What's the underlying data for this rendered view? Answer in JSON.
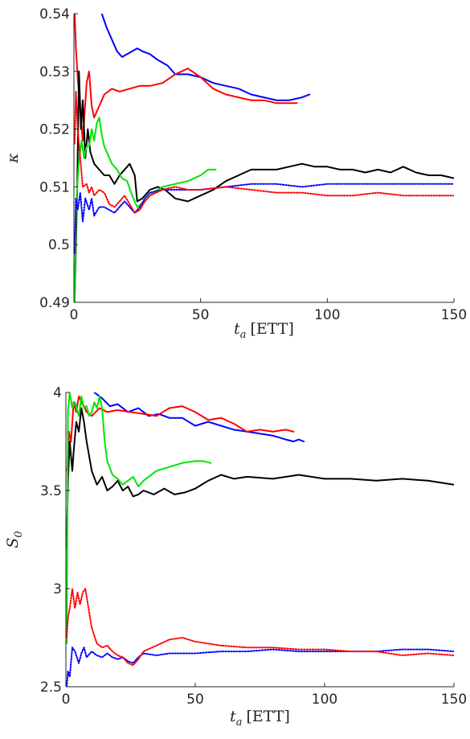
{
  "chart_data": [
    {
      "type": "line",
      "ylabel": "κ",
      "xlabel": {
        "var": "t",
        "sub": "a",
        "unit": "[ETT]"
      },
      "xlim": [
        0,
        150
      ],
      "ylim": [
        0.49,
        0.54
      ],
      "xticks": [
        0,
        50,
        100,
        150
      ],
      "yticks": [
        0.49,
        0.5,
        0.51,
        0.52,
        0.53,
        0.54
      ],
      "grid": false,
      "series": [
        {
          "color": "#0000ff",
          "dash": "solid",
          "x": [
            11,
            13,
            15,
            17,
            19,
            21,
            23,
            25,
            27,
            30,
            33,
            37,
            40,
            45,
            50,
            55,
            60,
            65,
            70,
            75,
            80,
            85,
            90,
            93
          ],
          "y": [
            0.54,
            0.5375,
            0.5355,
            0.5335,
            0.5325,
            0.533,
            0.5335,
            0.534,
            0.5335,
            0.533,
            0.532,
            0.531,
            0.5295,
            0.5295,
            0.529,
            0.528,
            0.5275,
            0.527,
            0.526,
            0.5255,
            0.525,
            0.525,
            0.5255,
            0.526
          ]
        },
        {
          "color": "#ff0000",
          "dash": "solid",
          "x": [
            0.3,
            0.8,
            1.5,
            2.5,
            3.5,
            5,
            6,
            7,
            8,
            10,
            12,
            15,
            18,
            22,
            26,
            30,
            35,
            40,
            45,
            50,
            55,
            60,
            65,
            70,
            75,
            80,
            85,
            88
          ],
          "y": [
            0.54,
            0.534,
            0.529,
            0.523,
            0.518,
            0.528,
            0.53,
            0.524,
            0.522,
            0.524,
            0.526,
            0.527,
            0.5265,
            0.527,
            0.5275,
            0.5275,
            0.528,
            0.5295,
            0.5305,
            0.529,
            0.527,
            0.526,
            0.5255,
            0.525,
            0.525,
            0.5245,
            0.5245,
            0.5245
          ]
        },
        {
          "color": "#000000",
          "dash": "solid",
          "x": [
            0.3,
            0.8,
            1.3,
            2,
            2.8,
            3.5,
            4.5,
            5.5,
            6.5,
            8,
            10,
            12,
            14,
            16,
            18,
            20,
            22,
            24,
            25,
            27,
            30,
            33,
            36,
            40,
            45,
            50,
            55,
            60,
            65,
            70,
            75,
            80,
            85,
            90,
            95,
            100,
            105,
            110,
            115,
            120,
            125,
            130,
            135,
            140,
            145,
            150
          ],
          "y": [
            0.49,
            0.5,
            0.51,
            0.53,
            0.52,
            0.525,
            0.515,
            0.52,
            0.516,
            0.514,
            0.513,
            0.512,
            0.512,
            0.5105,
            0.512,
            0.513,
            0.514,
            0.512,
            0.5075,
            0.508,
            0.5095,
            0.51,
            0.5095,
            0.508,
            0.5075,
            0.5085,
            0.5095,
            0.511,
            0.512,
            0.513,
            0.513,
            0.513,
            0.5135,
            0.514,
            0.5135,
            0.5135,
            0.513,
            0.513,
            0.5125,
            0.513,
            0.5125,
            0.5135,
            0.5125,
            0.512,
            0.512,
            0.5115
          ]
        },
        {
          "color": "#00e600",
          "dash": "solid",
          "x": [
            0.3,
            0.8,
            1.3,
            2,
            3,
            4,
            5,
            6,
            7,
            8,
            9,
            10,
            11,
            12,
            13,
            15,
            17,
            19,
            21,
            23,
            25,
            28,
            31,
            35,
            40,
            45,
            50,
            53,
            56
          ],
          "y": [
            0.49,
            0.505,
            0.51,
            0.5145,
            0.518,
            0.515,
            0.517,
            0.517,
            0.52,
            0.518,
            0.521,
            0.522,
            0.519,
            0.517,
            0.516,
            0.514,
            0.513,
            0.5115,
            0.511,
            0.5085,
            0.5065,
            0.5075,
            0.509,
            0.51,
            0.5105,
            0.511,
            0.512,
            0.513,
            0.513
          ]
        },
        {
          "color": "#0000ff",
          "dash": "dotted",
          "x": [
            0.3,
            0.8,
            1.5,
            2.5,
            3.5,
            4.5,
            6,
            7,
            8,
            10,
            12,
            14,
            16,
            18,
            20,
            22,
            24,
            26,
            28,
            30,
            35,
            40,
            45,
            50,
            60,
            70,
            80,
            90,
            100,
            110,
            120,
            130,
            140,
            150
          ],
          "y": [
            0.4985,
            0.508,
            0.506,
            0.509,
            0.504,
            0.508,
            0.506,
            0.508,
            0.505,
            0.5065,
            0.5065,
            0.506,
            0.5055,
            0.5065,
            0.5075,
            0.5065,
            0.5055,
            0.5065,
            0.508,
            0.509,
            0.5095,
            0.5095,
            0.5095,
            0.5095,
            0.51,
            0.5105,
            0.5105,
            0.51,
            0.5105,
            0.5105,
            0.5105,
            0.5105,
            0.5105,
            0.5105
          ]
        },
        {
          "color": "#ff0000",
          "dash": "dotted",
          "x": [
            0.3,
            0.8,
            1.5,
            2.5,
            3.5,
            5,
            6,
            7,
            8,
            10,
            12,
            14,
            16,
            18,
            20,
            22,
            24,
            26,
            28,
            30,
            35,
            40,
            45,
            50,
            60,
            70,
            80,
            90,
            100,
            110,
            120,
            130,
            140,
            150
          ],
          "y": [
            0.5175,
            0.5265,
            0.52,
            0.515,
            0.51,
            0.5105,
            0.509,
            0.51,
            0.5085,
            0.5095,
            0.509,
            0.507,
            0.5065,
            0.5075,
            0.5085,
            0.507,
            0.5055,
            0.506,
            0.5075,
            0.5085,
            0.5095,
            0.51,
            0.5095,
            0.5095,
            0.51,
            0.5095,
            0.509,
            0.509,
            0.5085,
            0.5085,
            0.509,
            0.5085,
            0.5085,
            0.5085
          ]
        }
      ]
    },
    {
      "type": "line",
      "ylabel": "S",
      "ylabel_sub": "0",
      "xlabel": {
        "var": "t",
        "sub": "a",
        "unit": "[ETT]"
      },
      "xlim": [
        0,
        150
      ],
      "ylim": [
        2.5,
        4.0
      ],
      "xticks": [
        0,
        50,
        100,
        150
      ],
      "yticks": [
        2.5,
        3,
        3.5,
        4
      ],
      "ytick_labels": [
        "2.5",
        "3",
        "3.5",
        "4"
      ],
      "grid": false,
      "series": [
        {
          "color": "#0000ff",
          "dash": "solid",
          "x": [
            11,
            14,
            17,
            20,
            24,
            28,
            32,
            36,
            40,
            45,
            50,
            55,
            60,
            65,
            70,
            75,
            80,
            85,
            88,
            90,
            92
          ],
          "y": [
            4.0,
            3.97,
            3.93,
            3.94,
            3.9,
            3.92,
            3.88,
            3.89,
            3.87,
            3.87,
            3.83,
            3.85,
            3.83,
            3.81,
            3.8,
            3.79,
            3.78,
            3.76,
            3.75,
            3.76,
            3.75
          ]
        },
        {
          "color": "#ff0000",
          "dash": "solid",
          "x": [
            0.5,
            1.2,
            2,
            3,
            4,
            5,
            6,
            7,
            8,
            10,
            13,
            16,
            20,
            25,
            30,
            35,
            40,
            45,
            50,
            55,
            60,
            65,
            70,
            75,
            80,
            85,
            88
          ],
          "y": [
            3.6,
            3.8,
            3.75,
            3.95,
            3.9,
            3.98,
            3.95,
            3.93,
            3.9,
            3.88,
            3.92,
            3.9,
            3.91,
            3.9,
            3.89,
            3.88,
            3.92,
            3.93,
            3.9,
            3.86,
            3.87,
            3.84,
            3.8,
            3.81,
            3.8,
            3.81,
            3.8
          ]
        },
        {
          "color": "#000000",
          "dash": "solid",
          "x": [
            0.3,
            0.8,
            1.5,
            2.5,
            3,
            4,
            5,
            6,
            7,
            8,
            10,
            12,
            14,
            16,
            18,
            20,
            22,
            24,
            26,
            28,
            30,
            34,
            38,
            42,
            46,
            50,
            55,
            60,
            65,
            70,
            80,
            90,
            100,
            110,
            120,
            130,
            140,
            150
          ],
          "y": [
            3.2,
            3.55,
            3.75,
            3.6,
            3.7,
            3.85,
            3.8,
            3.92,
            3.85,
            3.75,
            3.6,
            3.53,
            3.57,
            3.5,
            3.52,
            3.55,
            3.5,
            3.52,
            3.47,
            3.48,
            3.5,
            3.48,
            3.51,
            3.48,
            3.49,
            3.51,
            3.55,
            3.58,
            3.56,
            3.57,
            3.56,
            3.58,
            3.56,
            3.56,
            3.55,
            3.56,
            3.55,
            3.53
          ]
        },
        {
          "color": "#00e600",
          "dash": "solid",
          "x": [
            0.3,
            0.8,
            1.5,
            2.5,
            3.5,
            5,
            6,
            7,
            8,
            9,
            10,
            11,
            12,
            13,
            14,
            15,
            16,
            18,
            20,
            22,
            24,
            26,
            28,
            30,
            35,
            40,
            45,
            50,
            53,
            56
          ],
          "y": [
            2.72,
            3.9,
            4.0,
            3.92,
            3.95,
            3.88,
            3.98,
            3.92,
            3.93,
            3.88,
            3.9,
            3.95,
            3.92,
            3.98,
            3.92,
            3.75,
            3.65,
            3.58,
            3.56,
            3.53,
            3.55,
            3.57,
            3.52,
            3.55,
            3.6,
            3.62,
            3.64,
            3.65,
            3.65,
            3.64
          ]
        },
        {
          "color": "#0000ff",
          "dash": "dotted",
          "x": [
            0.3,
            0.8,
            1.5,
            2.5,
            3.5,
            5,
            6,
            7,
            8,
            10,
            12,
            14,
            16,
            18,
            20,
            22,
            24,
            26,
            28,
            30,
            35,
            40,
            45,
            50,
            60,
            70,
            80,
            90,
            100,
            110,
            120,
            130,
            140,
            150
          ],
          "y": [
            2.5,
            2.58,
            2.55,
            2.7,
            2.68,
            2.62,
            2.67,
            2.7,
            2.65,
            2.68,
            2.66,
            2.65,
            2.67,
            2.65,
            2.64,
            2.65,
            2.63,
            2.62,
            2.65,
            2.67,
            2.66,
            2.67,
            2.67,
            2.67,
            2.68,
            2.68,
            2.69,
            2.68,
            2.68,
            2.68,
            2.68,
            2.69,
            2.69,
            2.68
          ]
        },
        {
          "color": "#ff0000",
          "dash": "dotted",
          "x": [
            0.3,
            0.8,
            1.5,
            2.5,
            3.5,
            4.5,
            5.5,
            6.5,
            7.5,
            8.5,
            10,
            12,
            14,
            16,
            18,
            20,
            22,
            24,
            26,
            28,
            30,
            35,
            40,
            45,
            50,
            60,
            70,
            80,
            90,
            100,
            110,
            120,
            130,
            140,
            150
          ],
          "y": [
            2.75,
            2.85,
            2.9,
            3.0,
            2.9,
            2.98,
            2.92,
            2.98,
            3.0,
            2.92,
            2.8,
            2.72,
            2.7,
            2.71,
            2.68,
            2.66,
            2.65,
            2.62,
            2.61,
            2.64,
            2.68,
            2.71,
            2.74,
            2.75,
            2.73,
            2.71,
            2.7,
            2.7,
            2.69,
            2.69,
            2.68,
            2.68,
            2.66,
            2.67,
            2.66
          ]
        }
      ]
    }
  ]
}
